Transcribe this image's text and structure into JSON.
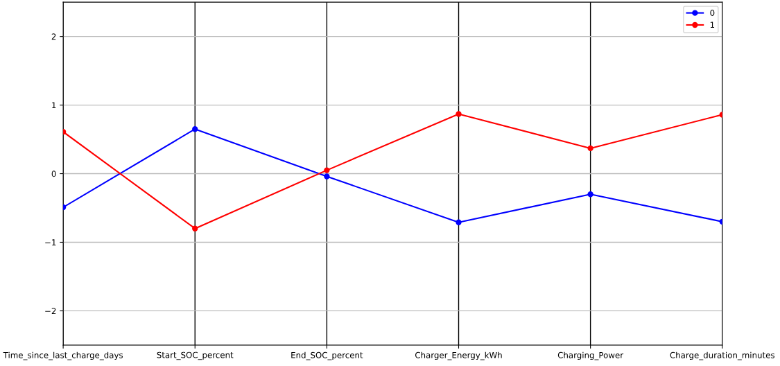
{
  "chart_data": {
    "type": "line",
    "categories": [
      "Time_since_last_charge_days",
      "Start_SOC_percent",
      "End_SOC_percent",
      "Charger_Energy_kWh",
      "Charging_Power",
      "Charge_duration_minutes"
    ],
    "series": [
      {
        "name": "0",
        "color": "#0000ff",
        "values": [
          -0.49,
          0.65,
          -0.04,
          -0.71,
          -0.3,
          -0.7
        ]
      },
      {
        "name": "1",
        "color": "#ff0000",
        "values": [
          0.61,
          -0.8,
          0.05,
          0.87,
          0.37,
          0.86
        ]
      }
    ],
    "ylim": [
      -2.5,
      2.5
    ],
    "yticks": [
      {
        "value": -2,
        "label": "−2"
      },
      {
        "value": -1,
        "label": "−1"
      },
      0,
      1,
      2
    ],
    "grid": true,
    "legend": "top right",
    "marker": "circle",
    "line_style": "solid"
  }
}
